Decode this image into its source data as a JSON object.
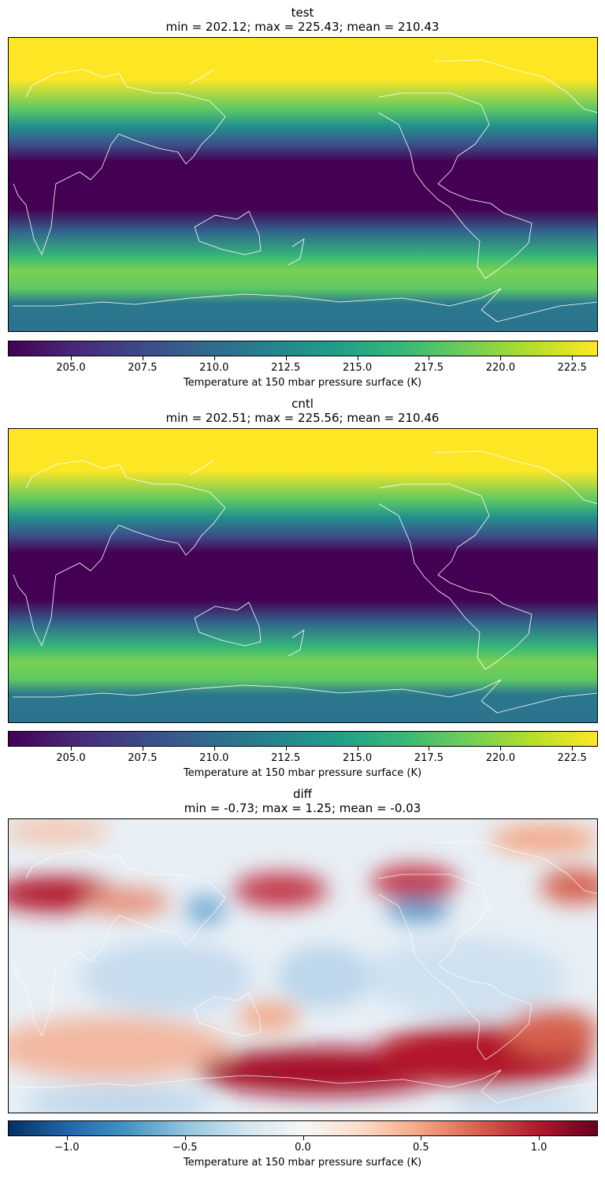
{
  "panels": [
    {
      "title": "test",
      "stats": "min = 202.12; max = 225.43; mean = 210.43",
      "colormap": "viridis",
      "colorbar": {
        "vmin": 202.8,
        "vmax": 223.4,
        "ticks": [
          205.0,
          207.5,
          210.0,
          212.5,
          215.0,
          217.5,
          220.0,
          222.5
        ],
        "tick_labels": [
          "205.0",
          "207.5",
          "210.0",
          "212.5",
          "215.0",
          "217.5",
          "220.0",
          "222.5"
        ],
        "label": "Temperature at 150 mbar pressure surface (K)"
      }
    },
    {
      "title": "cntl",
      "stats": "min = 202.51; max = 225.56; mean = 210.46",
      "colormap": "viridis",
      "colorbar": {
        "vmin": 202.8,
        "vmax": 223.4,
        "ticks": [
          205.0,
          207.5,
          210.0,
          212.5,
          215.0,
          217.5,
          220.0,
          222.5
        ],
        "tick_labels": [
          "205.0",
          "207.5",
          "210.0",
          "212.5",
          "215.0",
          "217.5",
          "220.0",
          "222.5"
        ],
        "label": "Temperature at 150 mbar pressure surface (K)"
      }
    },
    {
      "title": "diff",
      "stats": "min = -0.73; max = 1.25; mean = -0.03",
      "colormap": "RdBu_r",
      "colorbar": {
        "vmin": -1.25,
        "vmax": 1.25,
        "ticks": [
          -1.0,
          -0.5,
          0.0,
          0.5,
          1.0
        ],
        "tick_labels": [
          "−1.0",
          "−0.5",
          "0.0",
          "0.5",
          "1.0"
        ],
        "label": "Temperature at 150 mbar pressure surface (K)"
      }
    }
  ]
}
